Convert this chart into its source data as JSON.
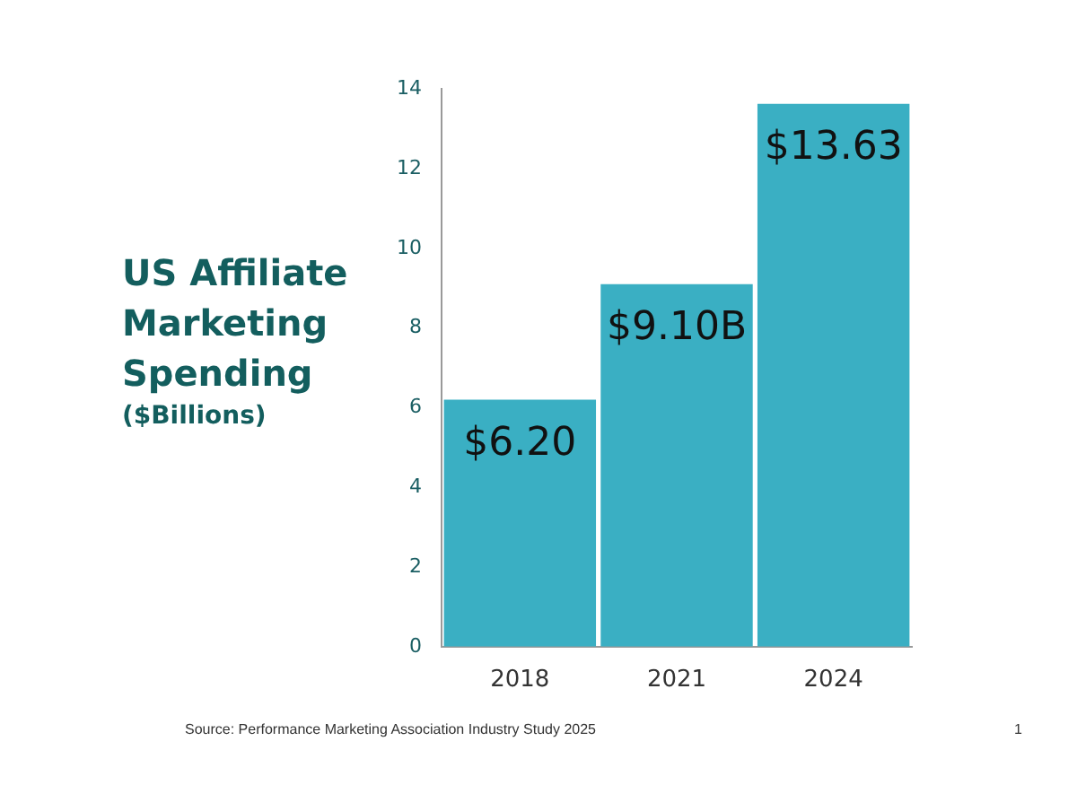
{
  "chart_data": {
    "type": "bar",
    "title": "US Affiliate Marketing Spending",
    "subtitle": "($Billions)",
    "categories": [
      "2018",
      "2021",
      "2024"
    ],
    "values": [
      6.2,
      9.1,
      13.63
    ],
    "value_labels": [
      "$6.20",
      "$9.10B",
      "$13.63"
    ],
    "color": "#3aafc3",
    "ylim": [
      0,
      14
    ],
    "yticks": [
      0,
      2,
      4,
      6,
      8,
      10,
      12,
      14
    ],
    "grid": false,
    "legend": false,
    "annotations": [
      "Source: Performance Marketing Association Industry Study 2025",
      "1"
    ]
  }
}
